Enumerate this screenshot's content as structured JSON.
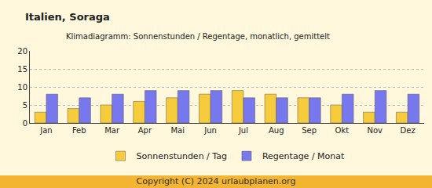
{
  "chart_data": {
    "type": "bar",
    "title": "Italien, Soraga",
    "subtitle": "Klimadiagramm: Sonnenstunden / Regentage, monatlich, gemittelt",
    "categories": [
      "Jan",
      "Feb",
      "Mar",
      "Apr",
      "Mai",
      "Jun",
      "Jul",
      "Aug",
      "Sep",
      "Okt",
      "Nov",
      "Dez"
    ],
    "series": [
      {
        "name": "Sonnenstunden / Tag",
        "color": "#f7cc3c",
        "values": [
          3,
          4,
          5,
          6,
          7,
          8,
          9,
          8,
          7,
          5,
          3,
          3
        ]
      },
      {
        "name": "Regentage / Monat",
        "color": "#7777ee",
        "values": [
          8,
          7,
          8,
          9,
          9,
          9,
          7,
          7,
          7,
          8,
          9,
          8
        ]
      }
    ],
    "ylim": [
      0,
      20
    ],
    "yticks": [
      0,
      5,
      10,
      15,
      20
    ],
    "grid": true,
    "legend": "bottom",
    "annotations": [
      "Copyright (C) 2024 urlaubplanen.org"
    ]
  }
}
